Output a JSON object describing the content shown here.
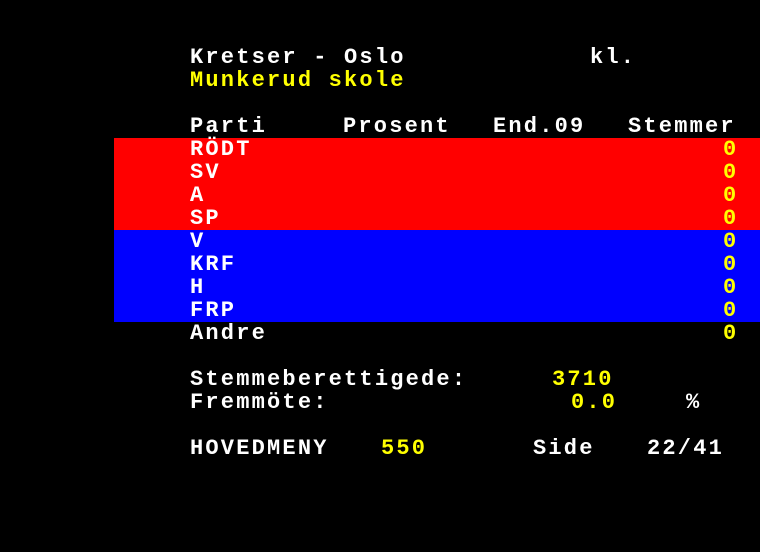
{
  "header": {
    "title": "Kretser - Oslo",
    "time_label": "kl.",
    "subtitle": "Munkerud skole"
  },
  "table": {
    "columns": [
      "Parti",
      "Prosent",
      "End.09",
      "Stemmer"
    ],
    "rows": [
      {
        "party": "RÖDT",
        "votes": "0",
        "bg": "#ff0000"
      },
      {
        "party": "SV",
        "votes": "0",
        "bg": "#ff0000"
      },
      {
        "party": "A",
        "votes": "0",
        "bg": "#ff0000"
      },
      {
        "party": "SP",
        "votes": "0",
        "bg": "#ff0000"
      },
      {
        "party": "V",
        "votes": "0",
        "bg": "#0000ff"
      },
      {
        "party": "KRF",
        "votes": "0",
        "bg": "#0000ff"
      },
      {
        "party": "H",
        "votes": "0",
        "bg": "#0000ff"
      },
      {
        "party": "FRP",
        "votes": "0",
        "bg": "#0000ff"
      },
      {
        "party": "Andre",
        "votes": "0",
        "bg": "#000000"
      }
    ]
  },
  "stats": {
    "eligible_label": "Stemmeberettigede:",
    "eligible_value": "3710",
    "turnout_label": "Fremmöte:",
    "turnout_value": "0.0",
    "turnout_unit": "%"
  },
  "footer": {
    "menu_label": "HOVEDMENY",
    "menu_page": "550",
    "page_label": "Side",
    "page_value": "22/41"
  },
  "colors": {
    "text": "#ffffff",
    "highlight": "#ffff00",
    "left_bloc": "#ff0000",
    "right_bloc": "#0000ff"
  }
}
